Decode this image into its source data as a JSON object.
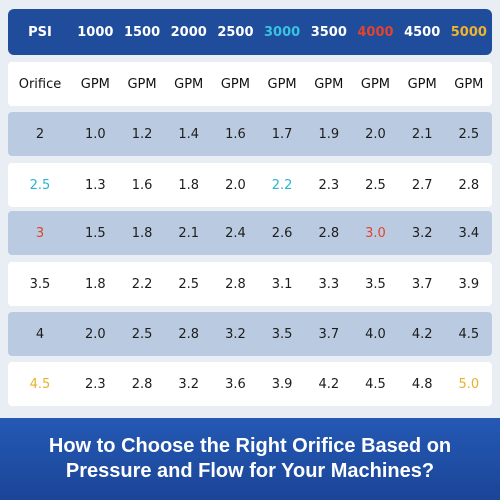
{
  "colors": {
    "header_bg": "#1f4d9c",
    "row_shade": "#bacbe1",
    "row_light": "#ffffff",
    "cyan": "#27b6d3",
    "red": "#e0432e",
    "yellow": "#e8b12b",
    "banner_bg": "#1f50a8"
  },
  "header": {
    "label": "PSI",
    "pressures": [
      "1000",
      "1500",
      "2000",
      "2500",
      "3000",
      "3500",
      "4000",
      "4500",
      "5000"
    ]
  },
  "units": {
    "label": "Orifice",
    "columns": [
      "GPM",
      "GPM",
      "GPM",
      "GPM",
      "GPM",
      "GPM",
      "GPM",
      "GPM",
      "GPM"
    ]
  },
  "rows": [
    {
      "orifice": "2",
      "values": [
        "1.0",
        "1.2",
        "1.4",
        "1.6",
        "1.7",
        "1.9",
        "2.0",
        "2.1",
        "2.5"
      ]
    },
    {
      "orifice": "2.5",
      "values": [
        "1.3",
        "1.6",
        "1.8",
        "2.0",
        "2.2",
        "2.3",
        "2.5",
        "2.7",
        "2.8"
      ]
    },
    {
      "orifice": "3",
      "values": [
        "1.5",
        "1.8",
        "2.1",
        "2.4",
        "2.6",
        "2.8",
        "3.0",
        "3.2",
        "3.4"
      ]
    },
    {
      "orifice": "3.5",
      "values": [
        "1.8",
        "2.2",
        "2.5",
        "2.8",
        "3.1",
        "3.3",
        "3.5",
        "3.7",
        "3.9"
      ]
    },
    {
      "orifice": "4",
      "values": [
        "2.0",
        "2.5",
        "2.8",
        "3.2",
        "3.5",
        "3.7",
        "4.0",
        "4.2",
        "4.5"
      ]
    },
    {
      "orifice": "4.5",
      "values": [
        "2.3",
        "2.8",
        "3.2",
        "3.6",
        "3.9",
        "4.2",
        "4.5",
        "4.8",
        "5.0"
      ]
    }
  ],
  "banner": {
    "line1": "How to Choose the Right Orifice Based on",
    "line2": "Pressure and Flow for Your Machines?"
  }
}
